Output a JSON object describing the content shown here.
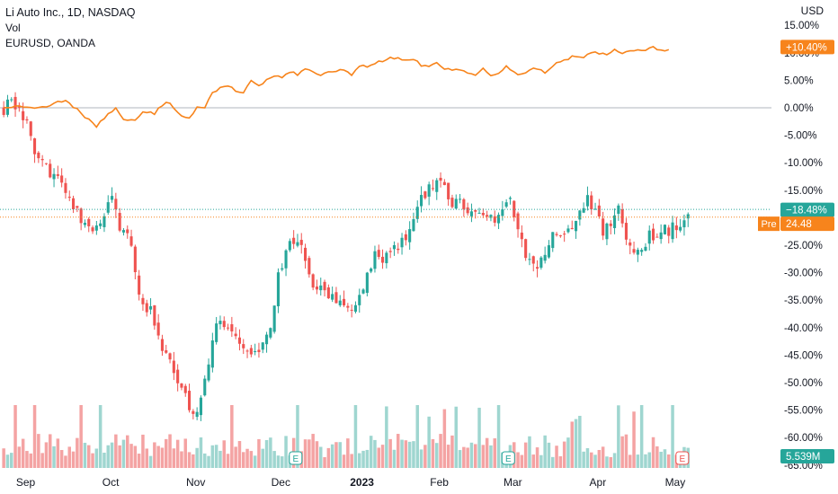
{
  "legend": {
    "symbol_line": "Li Auto Inc., 1D, NASDAQ",
    "volume_line": "Vol",
    "compare_line": "EURUSD, OANDA"
  },
  "currency_label": "USD",
  "colors": {
    "up": "#26a69a",
    "down": "#ef5350",
    "vol_up": "#9fd6d0",
    "vol_down": "#f4a3a3",
    "compare_line": "#f7841c",
    "zero_line": "#b2b5be",
    "last_badge": "#26a69a",
    "pre_badge": "#f7841c"
  },
  "chart_data": [
    {
      "type": "candlestick",
      "title": "Li Auto Inc., 1D, NASDAQ",
      "y_scale": "percent",
      "y_axis_ticks": [
        "15.00%",
        "10.00%",
        "5.00%",
        "0.00%",
        "-5.00%",
        "-10.00%",
        "-15.00%",
        "-20.00%",
        "-25.00%",
        "-30.00%",
        "-35.00%",
        "-40.00%",
        "-45.00%",
        "-50.00%",
        "-55.00%",
        "-60.00%",
        "-65.00%"
      ],
      "y_tick_values": [
        15,
        10,
        5,
        0,
        -5,
        -10,
        -15,
        -20,
        -25,
        -30,
        -35,
        -40,
        -45,
        -50,
        -55,
        -60,
        -65
      ],
      "ylim": [
        -68,
        17
      ],
      "x_axis_ticks": [
        "Sep",
        "Oct",
        "Nov",
        "Dec",
        "2023",
        "Feb",
        "Mar",
        "Apr",
        "May"
      ],
      "x_tick_bar_index": [
        5,
        27,
        49,
        71,
        92,
        112,
        131,
        153,
        173
      ],
      "bar_count": 190,
      "approx_close_path": [
        [
          0,
          0
        ],
        [
          4,
          1
        ],
        [
          6,
          -3
        ],
        [
          8,
          -8
        ],
        [
          12,
          -12
        ],
        [
          16,
          -15
        ],
        [
          20,
          -20
        ],
        [
          24,
          -22
        ],
        [
          28,
          -17
        ],
        [
          30,
          -22
        ],
        [
          33,
          -25
        ],
        [
          35,
          -34
        ],
        [
          38,
          -37
        ],
        [
          41,
          -43
        ],
        [
          43,
          -47
        ],
        [
          46,
          -50
        ],
        [
          48,
          -55
        ],
        [
          50,
          -55
        ],
        [
          52,
          -48
        ],
        [
          54,
          -43
        ],
        [
          56,
          -38
        ],
        [
          58,
          -41
        ],
        [
          61,
          -42
        ],
        [
          64,
          -46
        ],
        [
          67,
          -43
        ],
        [
          69,
          -40
        ],
        [
          71,
          -31
        ],
        [
          73,
          -26
        ],
        [
          75,
          -24
        ],
        [
          78,
          -27
        ],
        [
          80,
          -32
        ],
        [
          83,
          -33
        ],
        [
          85,
          -35
        ],
        [
          88,
          -36
        ],
        [
          90,
          -38
        ],
        [
          92,
          -33
        ],
        [
          94,
          -31
        ],
        [
          96,
          -27
        ],
        [
          99,
          -27
        ],
        [
          101,
          -26
        ],
        [
          104,
          -23
        ],
        [
          106,
          -19
        ],
        [
          108,
          -17
        ],
        [
          110,
          -15
        ],
        [
          112,
          -12
        ],
        [
          114,
          -14
        ],
        [
          116,
          -17
        ],
        [
          118,
          -16
        ],
        [
          120,
          -19
        ],
        [
          122,
          -18
        ],
        [
          125,
          -19
        ],
        [
          127,
          -22
        ],
        [
          129,
          -18
        ],
        [
          131,
          -17
        ],
        [
          133,
          -22
        ],
        [
          135,
          -28
        ],
        [
          137,
          -29
        ],
        [
          139,
          -27
        ],
        [
          141,
          -24
        ],
        [
          143,
          -23
        ],
        [
          145,
          -22
        ],
        [
          147,
          -21
        ],
        [
          149,
          -18
        ],
        [
          151,
          -16
        ],
        [
          153,
          -19
        ],
        [
          155,
          -22
        ],
        [
          157,
          -21
        ],
        [
          159,
          -19
        ],
        [
          161,
          -24
        ],
        [
          163,
          -26
        ],
        [
          165,
          -25
        ],
        [
          167,
          -23
        ],
        [
          169,
          -24
        ],
        [
          171,
          -22
        ],
        [
          173,
          -22
        ],
        [
          175,
          -21
        ],
        [
          177,
          -18.48
        ]
      ],
      "last_value_badge": "−18.48%",
      "pre_market": {
        "label": "Pre",
        "value": "24.48"
      }
    },
    {
      "type": "line",
      "name": "EURUSD, OANDA",
      "y_scale": "percent",
      "approx_path": [
        [
          0,
          0
        ],
        [
          4,
          0.5
        ],
        [
          8,
          0
        ],
        [
          12,
          0.5
        ],
        [
          16,
          1.5
        ],
        [
          20,
          -1
        ],
        [
          24,
          -3.5
        ],
        [
          27,
          -1
        ],
        [
          29,
          0
        ],
        [
          31,
          -2
        ],
        [
          34,
          -2.5
        ],
        [
          36,
          -1
        ],
        [
          39,
          -1
        ],
        [
          41,
          0.5
        ],
        [
          43,
          1
        ],
        [
          45,
          -1
        ],
        [
          48,
          -2
        ],
        [
          50,
          0
        ],
        [
          52,
          0
        ],
        [
          54,
          3
        ],
        [
          56,
          3.5
        ],
        [
          58,
          4
        ],
        [
          60,
          3
        ],
        [
          62,
          2.5
        ],
        [
          64,
          5
        ],
        [
          66,
          4
        ],
        [
          68,
          5
        ],
        [
          70,
          6
        ],
        [
          72,
          5.5
        ],
        [
          74,
          6.5
        ],
        [
          76,
          6
        ],
        [
          78,
          7
        ],
        [
          80,
          6.5
        ],
        [
          82,
          6
        ],
        [
          84,
          6.5
        ],
        [
          86,
          6.5
        ],
        [
          88,
          7
        ],
        [
          90,
          6
        ],
        [
          92,
          7.5
        ],
        [
          94,
          7.5
        ],
        [
          96,
          8
        ],
        [
          98,
          8.5
        ],
        [
          100,
          9
        ],
        [
          102,
          9
        ],
        [
          104,
          8.5
        ],
        [
          106,
          9
        ],
        [
          108,
          7.5
        ],
        [
          110,
          7.5
        ],
        [
          112,
          8
        ],
        [
          114,
          7
        ],
        [
          116,
          7
        ],
        [
          118,
          7
        ],
        [
          120,
          6.5
        ],
        [
          122,
          6
        ],
        [
          124,
          7
        ],
        [
          126,
          6
        ],
        [
          128,
          6.5
        ],
        [
          130,
          7.5
        ],
        [
          132,
          6.5
        ],
        [
          134,
          6
        ],
        [
          136,
          7
        ],
        [
          138,
          7
        ],
        [
          140,
          6.5
        ],
        [
          142,
          7.5
        ],
        [
          144,
          8.5
        ],
        [
          146,
          9
        ],
        [
          148,
          9.5
        ],
        [
          150,
          9
        ],
        [
          152,
          10
        ],
        [
          154,
          10
        ],
        [
          156,
          9.5
        ],
        [
          158,
          10.5
        ],
        [
          160,
          10
        ],
        [
          162,
          10.5
        ],
        [
          164,
          10.5
        ],
        [
          166,
          10.5
        ],
        [
          168,
          11
        ],
        [
          170,
          10.5
        ],
        [
          172,
          10.4
        ]
      ],
      "last_value_badge": "+10.40%"
    },
    {
      "type": "bar",
      "name": "Vol",
      "last_value_badge": "5.539M",
      "earnings_markers": [
        {
          "label": "E",
          "bar_index": 76
        },
        {
          "label": "E",
          "bar_index": 131
        },
        {
          "label": "E",
          "bar_index": 176
        }
      ]
    }
  ]
}
